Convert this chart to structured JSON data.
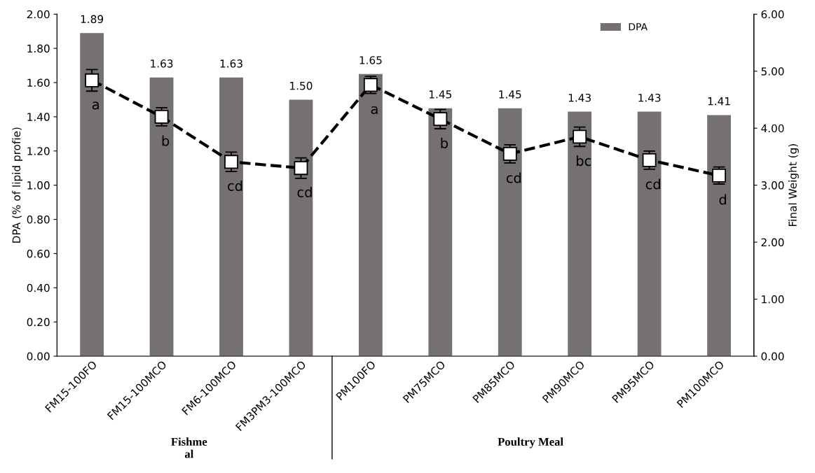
{
  "chart_data": {
    "type": "bar",
    "categories": [
      "FM15-100FO",
      "FM15-100MCO",
      "FM6-100MCO",
      "FM3PM3-100MCO",
      "PM100FO",
      "PM75MCO",
      "PM85MCO",
      "PM90MCO",
      "PM95MCO",
      "PM100MCO"
    ],
    "series": [
      {
        "name": "DPA",
        "color": "#767171",
        "values": [
          1.89,
          1.63,
          1.63,
          1.5,
          1.65,
          1.45,
          1.45,
          1.43,
          1.43,
          1.41
        ],
        "value_labels": [
          "1.89",
          "1.63",
          "1.63",
          "1.50",
          "1.65",
          "1.45",
          "1.45",
          "1.43",
          "1.43",
          "1.41"
        ]
      },
      {
        "type": "line",
        "axis": "y2",
        "color": "#000000",
        "values": [
          4.84,
          4.2,
          3.41,
          3.3,
          4.76,
          4.16,
          3.55,
          3.85,
          3.44,
          3.17
        ],
        "errors": [
          0.19,
          0.16,
          0.17,
          0.18,
          0.15,
          0.17,
          0.16,
          0.17,
          0.16,
          0.15
        ]
      }
    ],
    "marker": "square",
    "line_style": "dashed",
    "ylabel": "DPA (% of lipid profie)",
    "y2label": "Final Weight (g)",
    "ylim": [
      0,
      2
    ],
    "yticks": [
      {
        "value": 0,
        "label": "0.00"
      },
      {
        "value": 0.2,
        "label": "0.20"
      },
      {
        "value": 0.4,
        "label": "0.40"
      },
      {
        "value": 0.6,
        "label": "0.60"
      },
      {
        "value": 0.8,
        "label": "0.80"
      },
      {
        "value": 1,
        "label": "1.00"
      },
      {
        "value": 1.2,
        "label": "1.20"
      },
      {
        "value": 1.4,
        "label": "1.40"
      },
      {
        "value": 1.6,
        "label": "1.60"
      },
      {
        "value": 1.8,
        "label": "1.80"
      },
      {
        "value": 2,
        "label": "2.00"
      }
    ],
    "y2lim": [
      0,
      6
    ],
    "y2ticks": [
      {
        "value": 0,
        "label": "0.00"
      },
      {
        "value": 1,
        "label": "1.00"
      },
      {
        "value": 2,
        "label": "2.00"
      },
      {
        "value": 3,
        "label": "3.00"
      },
      {
        "value": 4,
        "label": "4.00"
      },
      {
        "value": 5,
        "label": "5.00"
      },
      {
        "value": 6,
        "label": "6.00"
      }
    ],
    "grid": false,
    "legend": "top right",
    "annotations": [
      "a",
      "b",
      "cd",
      "cd",
      "a",
      "b",
      "cd",
      "bc",
      "cd",
      "d",
      "Fishme\nal",
      "Poultry Meal"
    ]
  }
}
